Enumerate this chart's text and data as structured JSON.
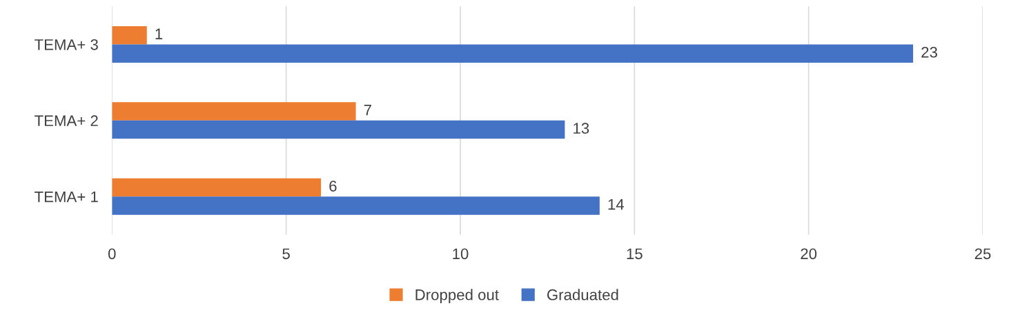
{
  "chart_data": {
    "type": "bar",
    "orientation": "horizontal",
    "categories": [
      "TEMA+ 3",
      "TEMA+ 2",
      "TEMA+ 1"
    ],
    "series": [
      {
        "name": "Dropped out",
        "color": "#ed7d31",
        "values": [
          1,
          7,
          6
        ]
      },
      {
        "name": "Graduated",
        "color": "#4472c4",
        "values": [
          23,
          13,
          14
        ]
      }
    ],
    "xlim": [
      0,
      25
    ],
    "xticks": [
      0,
      5,
      10,
      15,
      20,
      25
    ],
    "grid": "x",
    "legend": "bottom",
    "data_labels": true
  }
}
